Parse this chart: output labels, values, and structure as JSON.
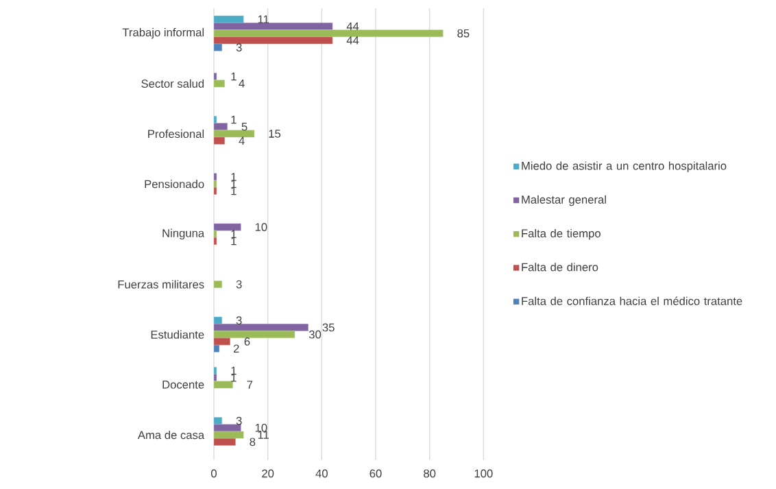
{
  "chart_data": {
    "type": "bar",
    "orientation": "horizontal",
    "categories": [
      "Trabajo informal",
      "Sector salud",
      "Profesional",
      "Pensionado",
      "Ninguna",
      "Fuerzas militares",
      "Estudiante",
      "Docente",
      "Ama de casa"
    ],
    "series": [
      {
        "name": "Miedo de asistir a un centro hospitalario",
        "color": "#4bacc6",
        "values": [
          11,
          null,
          1,
          null,
          null,
          null,
          3,
          1,
          3
        ]
      },
      {
        "name": "Malestar general",
        "color": "#8064a2",
        "values": [
          44,
          1,
          5,
          1,
          10,
          null,
          35,
          1,
          10
        ]
      },
      {
        "name": "Falta de tiempo",
        "color": "#9bbb59",
        "values": [
          85,
          4,
          15,
          1,
          1,
          3,
          30,
          7,
          11
        ]
      },
      {
        "name": "Falta de dinero",
        "color": "#c0504d",
        "values": [
          44,
          null,
          4,
          1,
          1,
          null,
          6,
          null,
          8
        ]
      },
      {
        "name": "Falta de confianza hacia el médico tratante",
        "color": "#4f81bd",
        "values": [
          3,
          null,
          null,
          null,
          null,
          null,
          2,
          null,
          null
        ]
      }
    ],
    "xlim": [
      0,
      100
    ],
    "xticks": [
      0,
      20,
      40,
      60,
      80,
      100
    ],
    "grid": "x",
    "legend": "right",
    "data_labels": true
  }
}
